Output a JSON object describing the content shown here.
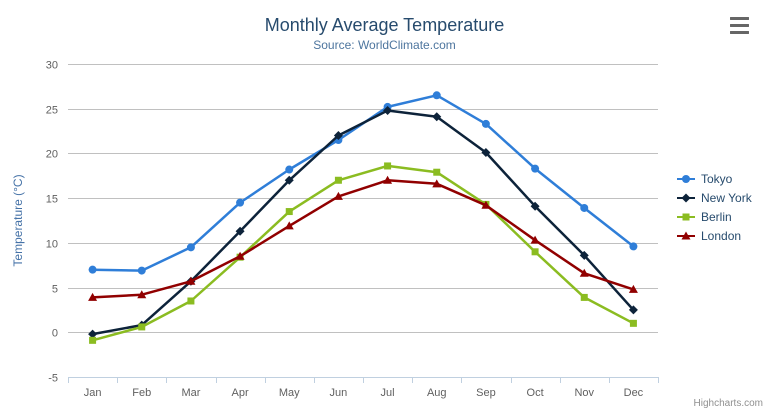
{
  "credits": "Highcharts.com",
  "colors": {
    "title": "#274b6d",
    "subtitle": "#4d759e",
    "axis_label": "#606060",
    "axis_title": "#4572a7",
    "grid": "#c0c0c0",
    "axis_line": "#c0d0e0",
    "legend_text": "#274b6d",
    "credits": "#909090",
    "background": "#ffffff",
    "menu_icon": "#666666"
  },
  "chart_data": {
    "type": "line",
    "title": "Monthly Average Temperature",
    "subtitle": "Source: WorldClimate.com",
    "xlabel": "",
    "ylabel": "Temperature (°C)",
    "ylim": [
      -5,
      30
    ],
    "yticks": [
      -5,
      0,
      5,
      10,
      15,
      20,
      25,
      30
    ],
    "grid": true,
    "legend_position": "right",
    "categories": [
      "Jan",
      "Feb",
      "Mar",
      "Apr",
      "May",
      "Jun",
      "Jul",
      "Aug",
      "Sep",
      "Oct",
      "Nov",
      "Dec"
    ],
    "series": [
      {
        "name": "Tokyo",
        "color": "#2f7ed8",
        "marker": "circle",
        "values": [
          7.0,
          6.9,
          9.5,
          14.5,
          18.2,
          21.5,
          25.2,
          26.5,
          23.3,
          18.3,
          13.9,
          9.6
        ]
      },
      {
        "name": "New York",
        "color": "#0d233a",
        "marker": "diamond",
        "values": [
          -0.2,
          0.8,
          5.7,
          11.3,
          17.0,
          22.0,
          24.8,
          24.1,
          20.1,
          14.1,
          8.6,
          2.5
        ]
      },
      {
        "name": "Berlin",
        "color": "#8bbc21",
        "marker": "square",
        "values": [
          -0.9,
          0.6,
          3.5,
          8.4,
          13.5,
          17.0,
          18.6,
          17.9,
          14.3,
          9.0,
          3.9,
          1.0
        ]
      },
      {
        "name": "London",
        "color": "#910000",
        "marker": "triangle",
        "values": [
          3.9,
          4.2,
          5.7,
          8.5,
          11.9,
          15.2,
          17.0,
          16.6,
          14.2,
          10.3,
          6.6,
          4.8
        ]
      }
    ]
  }
}
